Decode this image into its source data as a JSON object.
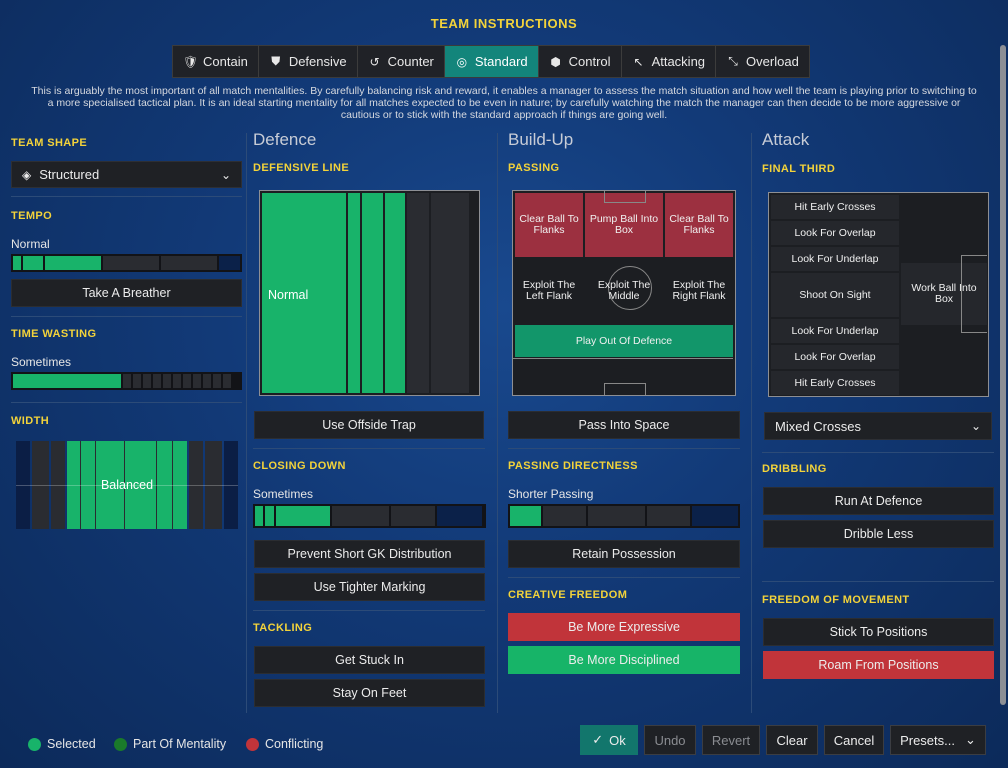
{
  "title": "TEAM INSTRUCTIONS",
  "mentalities": [
    {
      "label": "Contain",
      "icon": "contain-icon"
    },
    {
      "label": "Defensive",
      "icon": "shield-icon"
    },
    {
      "label": "Counter",
      "icon": "counter-icon"
    },
    {
      "label": "Standard",
      "icon": "standard-icon"
    },
    {
      "label": "Control",
      "icon": "control-icon"
    },
    {
      "label": "Attacking",
      "icon": "attacking-icon"
    },
    {
      "label": "Overload",
      "icon": "overload-icon"
    }
  ],
  "selected_mentality": "Standard",
  "description": "This is arguably the most important of all match mentalities. By carefully balancing risk and reward, it enables a manager to assess the match situation and how well the team is playing prior to switching to a more specialised tactical plan. It is an ideal starting mentality for all matches expected to be even in nature; by carefully watching the match the manager can then decide to be more aggressive or cautious or to stick with the standard approach if things are going well.",
  "left": {
    "team_shape_label": "TEAM SHAPE",
    "team_shape_value": "Structured",
    "tempo_label": "TEMPO",
    "tempo_value": "Normal",
    "tempo_button": "Take A Breather",
    "time_wasting_label": "TIME WASTING",
    "time_wasting_value": "Sometimes",
    "width_label": "WIDTH",
    "width_value": "Balanced"
  },
  "defence": {
    "heading": "Defence",
    "defensive_line_label": "DEFENSIVE LINE",
    "defensive_line_value": "Normal",
    "offside_button": "Use Offside Trap",
    "closing_down_label": "CLOSING DOWN",
    "closing_down_value": "Sometimes",
    "gk_button": "Prevent Short GK Distribution",
    "marking_button": "Use Tighter Marking",
    "tackling_label": "TACKLING",
    "stuck_in_button": "Get Stuck In",
    "stay_feet_button": "Stay On Feet"
  },
  "buildup": {
    "heading": "Build-Up",
    "passing_label": "PASSING",
    "cells": {
      "clear_left": "Clear Ball To Flanks",
      "pump": "Pump Ball Into Box",
      "clear_right": "Clear Ball To Flanks",
      "exploit_left": "Exploit The Left Flank",
      "exploit_middle": "Exploit The Middle",
      "exploit_right": "Exploit The Right Flank",
      "play_out": "Play Out Of Defence"
    },
    "space_button": "Pass Into Space",
    "directness_label": "PASSING DIRECTNESS",
    "directness_value": "Shorter Passing",
    "possession_button": "Retain Possession",
    "creative_label": "CREATIVE FREEDOM",
    "expressive_button": "Be More Expressive",
    "disciplined_button": "Be More Disciplined"
  },
  "attack": {
    "heading": "Attack",
    "final_third_label": "FINAL THIRD",
    "items": [
      "Hit Early Crosses",
      "Look For Overlap",
      "Look For Underlap",
      "Shoot On Sight",
      "Look For Underlap",
      "Look For Overlap",
      "Hit Early Crosses"
    ],
    "work_ball": "Work Ball Into Box",
    "crosses_value": "Mixed Crosses",
    "dribbling_label": "DRIBBLING",
    "run_defence_button": "Run At Defence",
    "dribble_less_button": "Dribble Less",
    "movement_label": "FREEDOM OF MOVEMENT",
    "stick_button": "Stick To Positions",
    "roam_button": "Roam From Positions"
  },
  "legend": {
    "selected": "Selected",
    "mentality": "Part Of Mentality",
    "conflicting": "Conflicting"
  },
  "footer": {
    "ok": "Ok",
    "undo": "Undo",
    "revert": "Revert",
    "clear": "Clear",
    "cancel": "Cancel",
    "presets": "Presets..."
  },
  "colors": {
    "selected": "#18b36a",
    "mentality": "#1a7a2a",
    "conflicting": "#c1343a",
    "accent": "#f3d33a",
    "active_tab": "#13857b"
  }
}
